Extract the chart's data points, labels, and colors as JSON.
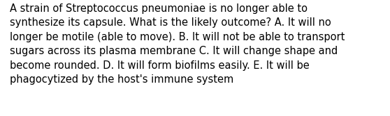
{
  "lines": [
    "A strain of Streptococcus pneumoniae is no longer able to",
    "synthesize its capsule. What is the likely outcome? A. It will no",
    "longer be motile (able to move). B. It will not be able to transport",
    "sugars across its plasma membrane C. It will change shape and",
    "become rounded. D. It will form biofilms easily. E. It will be",
    "phagocytized by the host's immune system"
  ],
  "background_color": "#ffffff",
  "text_color": "#000000",
  "font_size": 10.5,
  "fig_width": 5.58,
  "fig_height": 1.67,
  "dpi": 100
}
